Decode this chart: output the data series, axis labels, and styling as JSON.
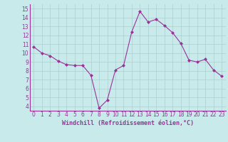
{
  "x": [
    0,
    1,
    2,
    3,
    4,
    5,
    6,
    7,
    8,
    9,
    10,
    11,
    12,
    13,
    14,
    15,
    16,
    17,
    18,
    19,
    20,
    21,
    22,
    23
  ],
  "y": [
    10.7,
    10.0,
    9.7,
    9.1,
    8.7,
    8.6,
    8.6,
    7.5,
    3.8,
    4.7,
    8.1,
    8.6,
    12.4,
    14.7,
    13.5,
    13.8,
    13.1,
    12.3,
    11.1,
    9.2,
    9.0,
    9.3,
    8.1,
    7.4
  ],
  "line_color": "#993399",
  "marker": "D",
  "marker_size": 2,
  "bg_color": "#c8eaea",
  "grid_color": "#aacece",
  "xlabel": "Windchill (Refroidissement éolien,°C)",
  "xlabel_color": "#993399",
  "tick_color": "#993399",
  "ylim": [
    3.5,
    15.5
  ],
  "yticks": [
    4,
    5,
    6,
    7,
    8,
    9,
    10,
    11,
    12,
    13,
    14,
    15
  ],
  "xlim": [
    -0.5,
    23.5
  ],
  "xticks": [
    0,
    1,
    2,
    3,
    4,
    5,
    6,
    7,
    8,
    9,
    10,
    11,
    12,
    13,
    14,
    15,
    16,
    17,
    18,
    19,
    20,
    21,
    22,
    23
  ],
  "tick_fontsize": 5.5,
  "xlabel_fontsize": 6.0
}
